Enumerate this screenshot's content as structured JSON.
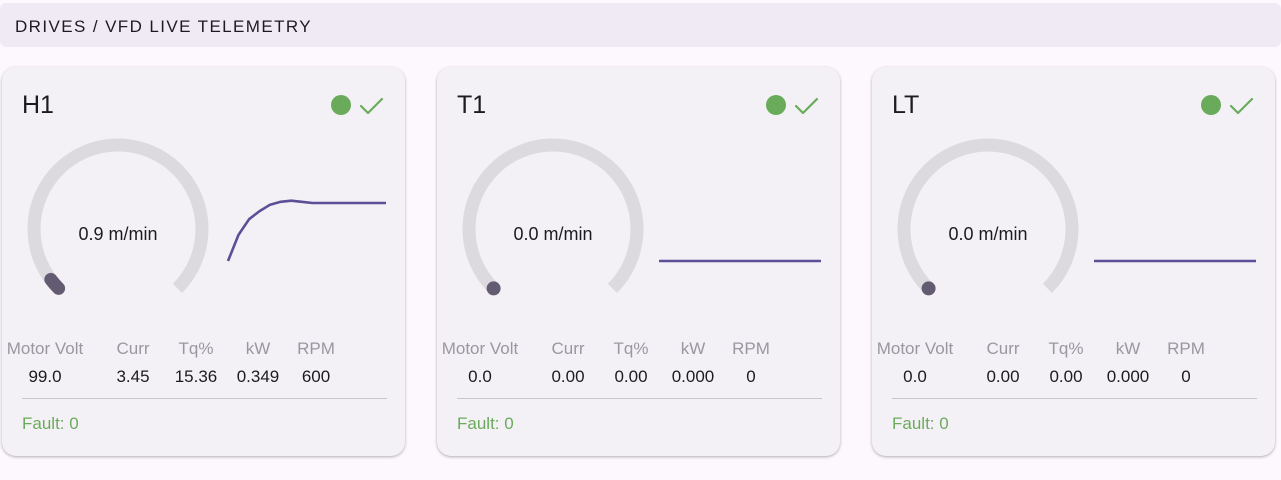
{
  "header": {
    "title": "DRIVES / VFD LIVE TELEMETRY"
  },
  "colors": {
    "ok": "#6aab5b",
    "track": "#dddadf",
    "indicator": "#625b71",
    "line": "#5b4f97"
  },
  "drives": [
    {
      "name": "H1",
      "status": "ok",
      "status_icon": "check-icon",
      "speed_display": "0.9 m/min",
      "gauge_fraction": 0.03,
      "trend": [
        0.0,
        0.45,
        0.72,
        0.86,
        0.97,
        1.02,
        1.04,
        1.02,
        1.0,
        1.0,
        1.0,
        1.0,
        1.0,
        1.0,
        1.0,
        1.0
      ],
      "metrics": {
        "labels": [
          "Motor Volt",
          "Curr",
          "Tq%",
          "kW",
          "RPM"
        ],
        "values": [
          "99.0",
          "3.45",
          "15.36",
          "0.349",
          "600"
        ]
      },
      "fault": "Fault: 0"
    },
    {
      "name": "T1",
      "status": "ok",
      "status_icon": "check-icon",
      "speed_display": "0.0 m/min",
      "gauge_fraction": 0,
      "trend": [
        0,
        0,
        0,
        0,
        0,
        0,
        0,
        0
      ],
      "metrics": {
        "labels": [
          "Motor Volt",
          "Curr",
          "Tq%",
          "kW",
          "RPM"
        ],
        "values": [
          "0.0",
          "0.00",
          "0.00",
          "0.000",
          "0"
        ]
      },
      "fault": "Fault: 0"
    },
    {
      "name": "LT",
      "status": "ok",
      "status_icon": "check-icon",
      "speed_display": "0.0 m/min",
      "gauge_fraction": 0,
      "trend": [
        0,
        0,
        0,
        0,
        0,
        0,
        0,
        0
      ],
      "metrics": {
        "labels": [
          "Motor Volt",
          "Curr",
          "Tq%",
          "kW",
          "RPM"
        ],
        "values": [
          "0.0",
          "0.00",
          "0.00",
          "0.000",
          "0"
        ]
      },
      "fault": "Fault: 0"
    }
  ]
}
